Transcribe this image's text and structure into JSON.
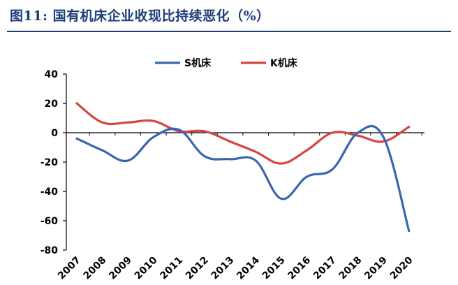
{
  "title": "图11: 国有机床企业收现比持续恶化（%）",
  "chart_data": {
    "type": "line",
    "title": "图11: 国有机床企业收现比持续恶化（%）",
    "categories": [
      "2007",
      "2008",
      "2009",
      "2010",
      "2011",
      "2012",
      "2013",
      "2014",
      "2015",
      "2016",
      "2017",
      "2018",
      "2019",
      "2020"
    ],
    "series": [
      {
        "name": "S机床",
        "color": "#3a66b0",
        "values": [
          -4,
          -12,
          -19,
          -3,
          2,
          -16,
          -18,
          -19,
          -45,
          -30,
          -25,
          0,
          -3,
          -67
        ]
      },
      {
        "name": "K机床",
        "color": "#d64541",
        "values": [
          20,
          7,
          7,
          8,
          1,
          1,
          -6,
          -13,
          -21,
          -12,
          0,
          -2,
          -6,
          4
        ]
      }
    ],
    "yticks": [
      40,
      20,
      0,
      -20,
      -40,
      -60,
      -80
    ],
    "ylim": [
      -80,
      40
    ],
    "legend_position": "top-center",
    "grid": false
  }
}
